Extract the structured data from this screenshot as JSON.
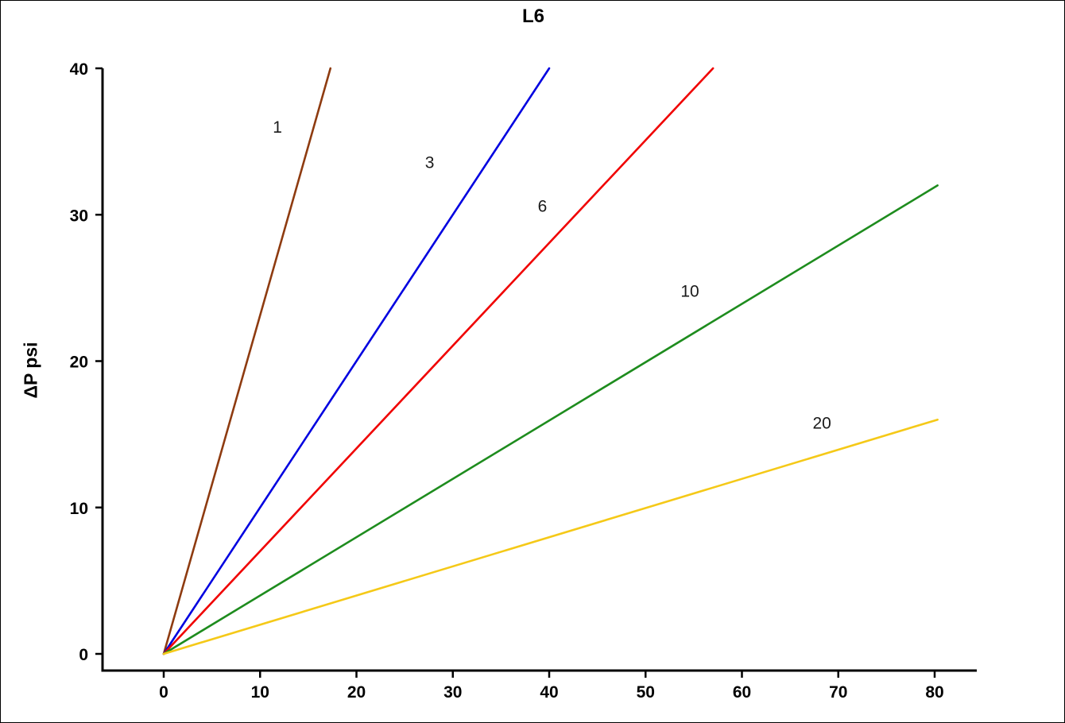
{
  "chart_data": {
    "type": "line",
    "title": "L6",
    "xlabel": "",
    "ylabel": "ΔP psi",
    "xlim": [
      0,
      80
    ],
    "ylim": [
      0,
      40
    ],
    "grid": false,
    "legend": "none (inline labels on lines)",
    "x_ticks": [
      0,
      10,
      20,
      30,
      40,
      50,
      60,
      70,
      80
    ],
    "y_ticks": [
      0,
      10,
      20,
      30,
      40
    ],
    "series": [
      {
        "name": "1",
        "color": "#8e3b10",
        "points": [
          [
            0,
            0
          ],
          [
            17.3,
            40
          ]
        ],
        "label_pos": [
          11.8,
          35.6
        ]
      },
      {
        "name": "3",
        "color": "#0000e0",
        "points": [
          [
            0,
            0
          ],
          [
            40,
            40
          ]
        ],
        "label_pos": [
          27.6,
          33.2
        ]
      },
      {
        "name": "6",
        "color": "#f00000",
        "points": [
          [
            0,
            0
          ],
          [
            57,
            40
          ]
        ],
        "label_pos": [
          39.3,
          30.2
        ]
      },
      {
        "name": "10",
        "color": "#1e8c1e",
        "points": [
          [
            0,
            0
          ],
          [
            80.3,
            32
          ]
        ],
        "label_pos": [
          54.6,
          24.4
        ]
      },
      {
        "name": "20",
        "color": "#f5c918",
        "points": [
          [
            0,
            0
          ],
          [
            80.3,
            16
          ]
        ],
        "label_pos": [
          68.3,
          15.4
        ]
      }
    ],
    "axis_color": "#000000"
  }
}
